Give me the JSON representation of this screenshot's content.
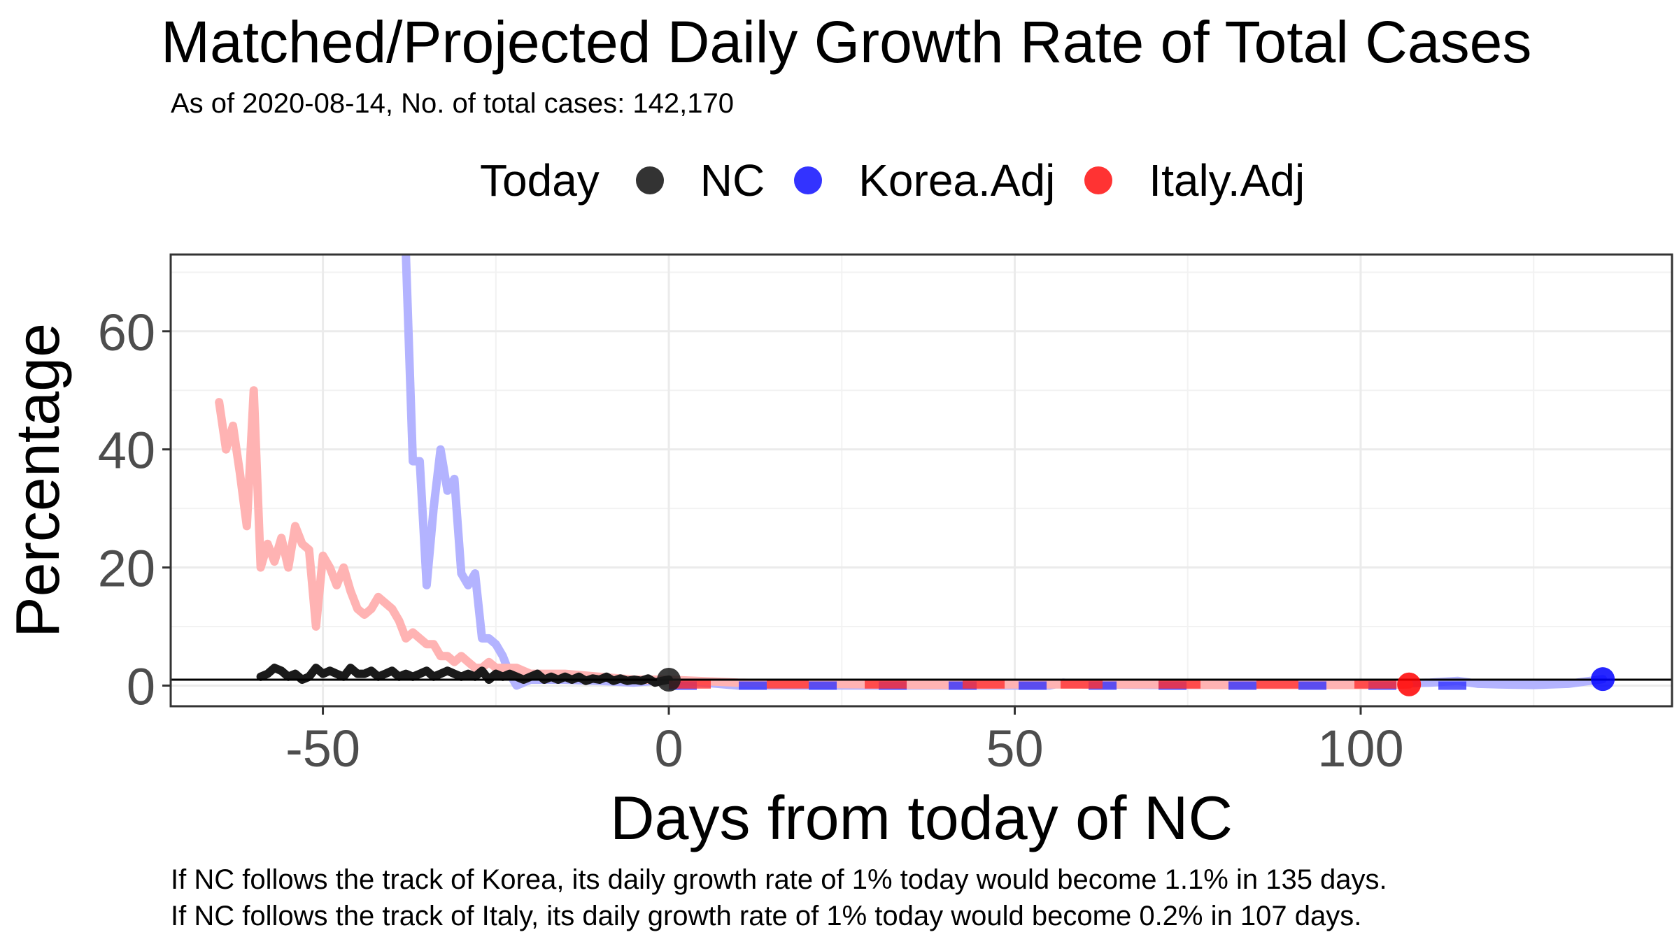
{
  "chart_data": {
    "type": "line",
    "title": "Matched/Projected Daily Growth Rate of Total Cases",
    "subtitle": "As of 2020-08-14, No. of total cases: 142,170",
    "xlabel": "Days from today of NC",
    "ylabel": "Percentage",
    "xlim": [
      -72,
      145
    ],
    "ylim": [
      -3.5,
      73
    ],
    "x_ticks": [
      -50,
      0,
      50,
      100
    ],
    "x_tick_labels": [
      "-50",
      "0",
      "50",
      "100"
    ],
    "y_ticks": [
      0,
      20,
      40,
      60
    ],
    "y_tick_labels": [
      "0",
      "20",
      "40",
      "60"
    ],
    "grid": true,
    "reference_line_y": 1,
    "legend": {
      "title": "Today",
      "position": "top",
      "entries": [
        "NC",
        "Korea.Adj",
        "Italy.Adj"
      ]
    },
    "series": [
      {
        "name": "Korea.Adj",
        "color": "#0000ff",
        "x": [
          -38,
          -37,
          -36,
          -35,
          -34,
          -33,
          -32,
          -31,
          -30,
          -29,
          -28,
          -27,
          -26,
          -25,
          -24,
          -23,
          -22,
          -20,
          -15,
          -10,
          -5,
          0,
          10,
          20,
          30,
          40,
          50,
          55,
          57,
          60,
          70,
          80,
          90,
          100,
          110,
          114,
          117,
          120,
          125,
          130,
          135
        ],
        "values": [
          73,
          38,
          38,
          17,
          30,
          40,
          33,
          35,
          19,
          17,
          19,
          8,
          8,
          7,
          5,
          2,
          0,
          1,
          1,
          0.8,
          0.5,
          1,
          0,
          0,
          0,
          0,
          0,
          0,
          0.5,
          0.2,
          0.1,
          0.1,
          0.3,
          0.2,
          0.5,
          0.8,
          0.3,
          0.2,
          0.1,
          0.3,
          1.1
        ]
      },
      {
        "name": "Italy.Adj",
        "color": "#ff0000",
        "x": [
          -65,
          -64,
          -63,
          -62,
          -61,
          -60,
          -59,
          -58,
          -57,
          -56,
          -55,
          -54,
          -53,
          -52,
          -51,
          -50,
          -49,
          -48,
          -47,
          -46,
          -45,
          -44,
          -43,
          -42,
          -41,
          -40,
          -39,
          -38,
          -37,
          -36,
          -35,
          -34,
          -33,
          -32,
          -31,
          -30,
          -29,
          -28,
          -27,
          -26,
          -25,
          -24,
          -22,
          -20,
          -15,
          -10,
          -5,
          0,
          10,
          20,
          30,
          40,
          50,
          60,
          70,
          80,
          90,
          100,
          107
        ],
        "values": [
          48,
          40,
          44,
          36,
          27,
          50,
          20,
          24,
          21,
          25,
          20,
          27,
          24,
          23,
          10,
          22,
          20,
          17,
          20,
          16,
          13,
          12,
          13,
          15,
          14,
          13,
          11,
          8,
          9,
          8,
          7,
          7,
          5,
          5,
          4,
          5,
          4,
          3,
          3,
          4,
          3,
          3,
          3,
          2,
          2,
          1.5,
          1,
          1,
          0.5,
          0.3,
          0.2,
          0.1,
          0.2,
          0.2,
          0.2,
          0.1,
          0.1,
          0.1,
          0.2
        ]
      },
      {
        "name": "NC",
        "color": "#1a1a1a",
        "x": [
          -59,
          -58,
          -57,
          -56,
          -55,
          -54,
          -53,
          -52,
          -51,
          -50,
          -49,
          -48,
          -47,
          -46,
          -45,
          -44,
          -43,
          -42,
          -41,
          -40,
          -39,
          -38,
          -37,
          -36,
          -35,
          -34,
          -33,
          -32,
          -31,
          -30,
          -29,
          -28,
          -27,
          -26,
          -25,
          -24,
          -23,
          -22,
          -21,
          -20,
          -19,
          -18,
          -17,
          -16,
          -15,
          -14,
          -13,
          -12,
          -11,
          -10,
          -9,
          -8,
          -7,
          -6,
          -5,
          -4,
          -3,
          -2,
          -1,
          0
        ],
        "values": [
          1.5,
          2,
          3,
          2.5,
          1.5,
          2,
          1,
          1.5,
          3,
          2,
          2.5,
          2,
          1.5,
          3,
          2,
          2,
          2.5,
          1.5,
          2,
          2.5,
          1.5,
          2,
          1.5,
          2,
          2.5,
          1.5,
          2,
          2.5,
          2,
          1.5,
          2,
          1.5,
          2.5,
          1,
          2,
          1.5,
          2,
          1.5,
          1,
          1.5,
          2,
          1,
          1.5,
          1,
          1.5,
          1,
          1.5,
          0.8,
          1.2,
          1,
          1.5,
          0.8,
          1.2,
          0.8,
          1,
          0.8,
          1.2,
          0.5,
          0.8,
          1
        ]
      }
    ],
    "today_points": [
      {
        "series": "NC",
        "x": 0,
        "y": 1,
        "color": "#1a1a1a"
      },
      {
        "series": "Korea.Adj",
        "x": 135,
        "y": 1.1,
        "color": "#0000ff"
      },
      {
        "series": "Italy.Adj",
        "x": 107,
        "y": 0.2,
        "color": "#ff0000"
      }
    ],
    "legend_colors": {
      "NC": "#1a1a1a",
      "Korea.Adj": "#0000ff",
      "Italy.Adj": "#ff0000"
    }
  },
  "captions": [
    "If NC follows the track of Korea, its daily growth rate of 1% today would become 1.1% in 135 days.",
    "If NC follows the track of Italy, its daily growth rate of 1% today would become 0.2% in 107 days."
  ]
}
